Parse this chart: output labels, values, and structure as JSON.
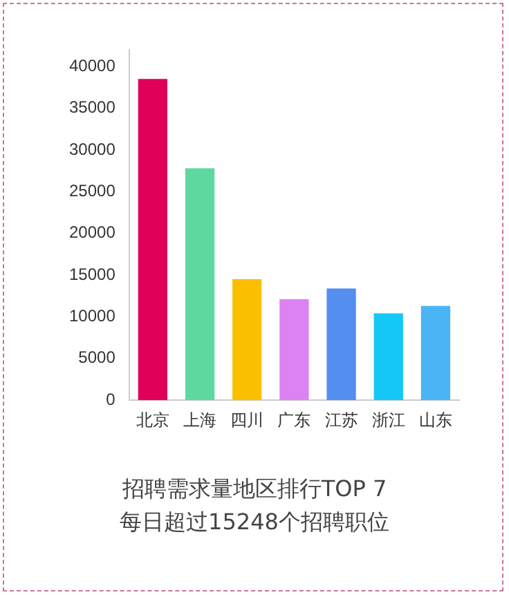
{
  "chart_data": {
    "type": "bar",
    "title": "招聘需求量地区排行TOP 7",
    "subtitle": "每日超过15248个招聘职位",
    "categories": [
      "北京",
      "上海",
      "四川",
      "广东",
      "江苏",
      "浙江",
      "山东"
    ],
    "values": [
      38500,
      27800,
      14500,
      12100,
      13400,
      10400,
      11300
    ],
    "colors": [
      "#e0005a",
      "#5dd9a0",
      "#fbbf00",
      "#dd82f2",
      "#538ef0",
      "#14c8f5",
      "#4ab4f5"
    ],
    "ylim": [
      0,
      42000
    ],
    "yticks": [
      0,
      5000,
      10000,
      15000,
      20000,
      25000,
      30000,
      35000,
      40000
    ],
    "grid": false,
    "legend": false
  }
}
